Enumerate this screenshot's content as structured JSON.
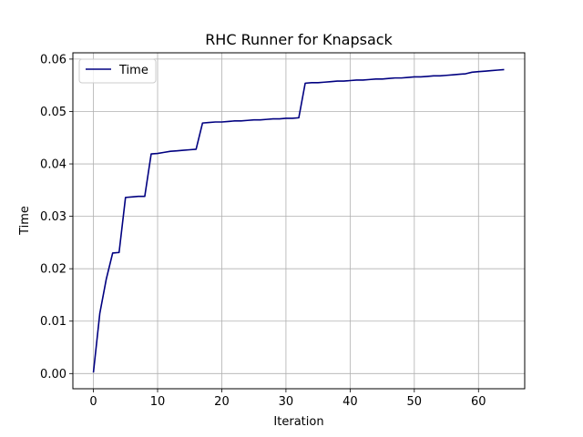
{
  "chart_data": {
    "type": "line",
    "title": "RHC Runner for Knapsack",
    "xlabel": "Iteration",
    "ylabel": "Time",
    "xlim": [
      -3.2,
      67.2
    ],
    "ylim": [
      -0.0029,
      0.0612
    ],
    "x_ticks": [
      0,
      10,
      20,
      30,
      40,
      50,
      60
    ],
    "y_ticks": [
      0.0,
      0.01,
      0.02,
      0.03,
      0.04,
      0.05,
      0.06
    ],
    "x_tick_labels": [
      "0",
      "10",
      "20",
      "30",
      "40",
      "50",
      "60"
    ],
    "y_tick_labels": [
      "0.00",
      "0.01",
      "0.02",
      "0.03",
      "0.04",
      "0.05",
      "0.06"
    ],
    "grid": true,
    "legend": "upper-left",
    "series": [
      {
        "name": "Time",
        "color": "#000080",
        "x": [
          0,
          1,
          2,
          3,
          4,
          5,
          6,
          7,
          8,
          9,
          10,
          11,
          12,
          13,
          14,
          15,
          16,
          17,
          18,
          19,
          20,
          21,
          22,
          23,
          24,
          25,
          26,
          27,
          28,
          29,
          30,
          31,
          32,
          33,
          34,
          35,
          36,
          37,
          38,
          39,
          40,
          41,
          42,
          43,
          44,
          45,
          46,
          47,
          48,
          49,
          50,
          51,
          52,
          53,
          54,
          55,
          56,
          57,
          58,
          59,
          60,
          61,
          62,
          63,
          64
        ],
        "y": [
          0.0002,
          0.0115,
          0.018,
          0.023,
          0.0231,
          0.0336,
          0.0337,
          0.0338,
          0.0338,
          0.0419,
          0.042,
          0.0422,
          0.0424,
          0.0425,
          0.0426,
          0.0427,
          0.0428,
          0.0478,
          0.0479,
          0.048,
          0.048,
          0.0481,
          0.0482,
          0.0482,
          0.0483,
          0.0484,
          0.0484,
          0.0485,
          0.0486,
          0.0486,
          0.0487,
          0.0487,
          0.0488,
          0.0554,
          0.0555,
          0.0555,
          0.0556,
          0.0557,
          0.0558,
          0.0558,
          0.0559,
          0.056,
          0.056,
          0.0561,
          0.0562,
          0.0562,
          0.0563,
          0.0564,
          0.0564,
          0.0565,
          0.0566,
          0.0566,
          0.0567,
          0.0568,
          0.0568,
          0.0569,
          0.057,
          0.0571,
          0.0572,
          0.0575,
          0.0576,
          0.0577,
          0.0578,
          0.0579,
          0.058
        ]
      }
    ]
  }
}
